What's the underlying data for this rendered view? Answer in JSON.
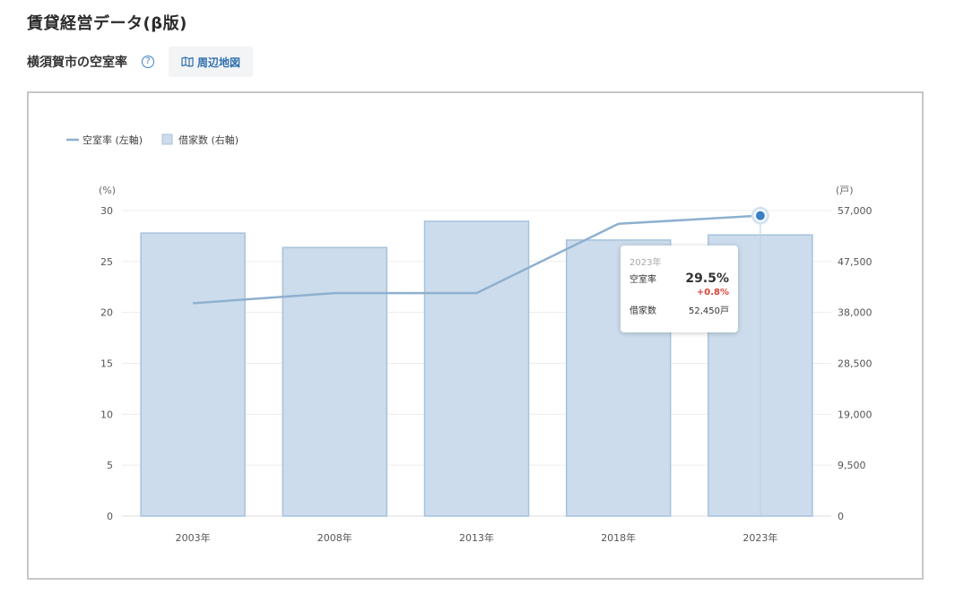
{
  "page": {
    "title": "賃貸経営データ(β版)",
    "subtitle": "横須賀市の空室率",
    "help_icon": "?",
    "map_button_label": "周辺地図",
    "map_icon": "map-icon"
  },
  "tooltip": {
    "year": "2023年",
    "rate_label": "空室率",
    "rate_value": "29.5%",
    "rate_change": "+0.8%",
    "houses_label": "借家数",
    "houses_value": "52,450戸"
  },
  "colors": {
    "line": "#8eb0d0",
    "bar_fill": "#ccdcec",
    "bar_stroke": "#a6c2dd",
    "marker": "#3b7fc4",
    "accent": "#2f6fae",
    "positive_change": "#d9443a"
  },
  "chart_data": {
    "type": "bar",
    "categories": [
      "2003年",
      "2008年",
      "2013年",
      "2018年",
      "2023年"
    ],
    "series": [
      {
        "name": "空室率 (左軸)",
        "type": "line",
        "axis": "left",
        "values": [
          20.9,
          21.9,
          21.9,
          28.7,
          29.5
        ]
      },
      {
        "name": "借家数 (右軸)",
        "type": "bar",
        "axis": "right",
        "values": [
          52800,
          50100,
          55000,
          51500,
          52450
        ]
      }
    ],
    "left_axis": {
      "unit_label": "(%)",
      "ticks": [
        "0",
        "5",
        "10",
        "15",
        "20",
        "25",
        "30"
      ],
      "ylim": [
        0,
        30
      ]
    },
    "right_axis": {
      "unit_label": "(戸)",
      "ticks": [
        "0",
        "9,500",
        "19,000",
        "28,500",
        "38,000",
        "47,500",
        "57,000"
      ],
      "ylim": [
        0,
        57000
      ]
    },
    "highlighted_category": "2023年",
    "grid": true,
    "legend_position": "top-left"
  }
}
